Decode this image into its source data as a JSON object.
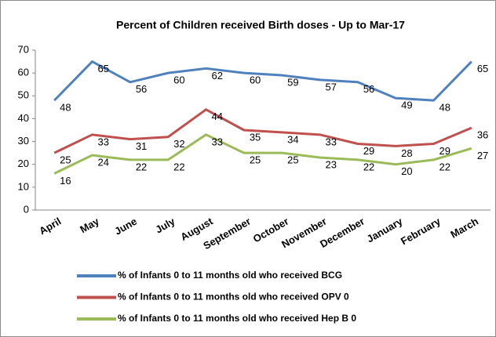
{
  "chart_data": {
    "type": "line",
    "title": "Percent of Children received Birth doses - Up to Mar-17",
    "categories": [
      "April",
      "May",
      "June",
      "July",
      "August",
      "September",
      "October",
      "November",
      "December",
      "January",
      "February",
      "March"
    ],
    "series": [
      {
        "name": "% of Infants 0 to 11 months old who received BCG",
        "color": "#4f81bd",
        "values": [
          48,
          65,
          56,
          60,
          62,
          60,
          59,
          57,
          56,
          49,
          48,
          65
        ]
      },
      {
        "name": "% of Infants 0 to 11 months old who received OPV 0",
        "color": "#c0504d",
        "values": [
          25,
          33,
          31,
          32,
          44,
          35,
          34,
          33,
          29,
          28,
          29,
          36
        ]
      },
      {
        "name": "% of Infants 0 to 11 months old who received Hep B 0",
        "color": "#9bbb59",
        "values": [
          16,
          24,
          22,
          22,
          33,
          25,
          25,
          23,
          22,
          20,
          22,
          27
        ]
      }
    ],
    "ylim": [
      0,
      70
    ],
    "yticks": [
      0,
      10,
      20,
      30,
      40,
      50,
      60,
      70
    ],
    "grid": false,
    "legend": "bottom"
  }
}
